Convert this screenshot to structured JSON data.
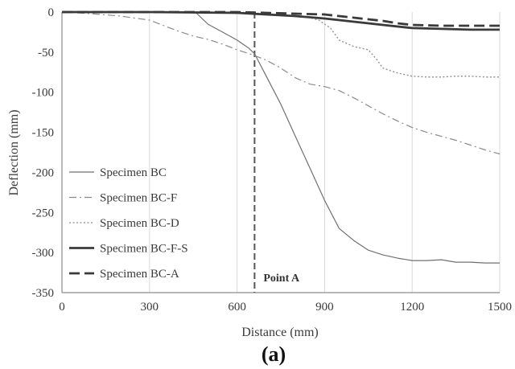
{
  "chart_data": {
    "type": "line",
    "xlabel": "Distance (mm)",
    "ylabel": "Deflection (mm)",
    "xlim": [
      0,
      1500
    ],
    "ylim": [
      -350,
      0
    ],
    "xticks": [
      0,
      300,
      600,
      900,
      1200,
      1500
    ],
    "yticks": [
      0,
      -50,
      -100,
      -150,
      -200,
      -250,
      -300,
      -350
    ],
    "grid": "vertical",
    "legend_position": "bottom-left",
    "panel_label": "(a)",
    "annotation": {
      "label": "Point A",
      "x": 660
    },
    "series": [
      {
        "name": "Specimen BC",
        "style": "solid-thin",
        "color": "#707070",
        "x": [
          0,
          100,
          200,
          300,
          400,
          460,
          500,
          550,
          600,
          640,
          660,
          700,
          750,
          800,
          850,
          900,
          950,
          1000,
          1050,
          1100,
          1150,
          1200,
          1250,
          1300,
          1350,
          1400,
          1450,
          1500
        ],
        "y": [
          0,
          0,
          0,
          0,
          0,
          -1,
          -15,
          -25,
          -35,
          -45,
          -52,
          -80,
          -115,
          -155,
          -195,
          -235,
          -270,
          -285,
          -297,
          -303,
          -307,
          -310,
          -310,
          -309,
          -312,
          -312,
          -313,
          -313
        ]
      },
      {
        "name": "Specimen BC-F",
        "style": "dashdot",
        "color": "#8a8a8a",
        "x": [
          0,
          100,
          200,
          300,
          350,
          400,
          450,
          500,
          550,
          600,
          650,
          700,
          750,
          800,
          850,
          900,
          950,
          1000,
          1050,
          1100,
          1150,
          1200,
          1250,
          1300,
          1350,
          1400,
          1450,
          1500
        ],
        "y": [
          0,
          -2,
          -5,
          -10,
          -17,
          -24,
          -30,
          -34,
          -40,
          -47,
          -53,
          -60,
          -70,
          -82,
          -90,
          -93,
          -98,
          -107,
          -117,
          -127,
          -136,
          -144,
          -150,
          -155,
          -160,
          -166,
          -172,
          -177
        ]
      },
      {
        "name": "Specimen BC-D",
        "style": "dotted",
        "color": "#8a8a8a",
        "x": [
          0,
          300,
          600,
          700,
          800,
          850,
          880,
          920,
          950,
          1000,
          1050,
          1080,
          1100,
          1150,
          1200,
          1250,
          1300,
          1350,
          1400,
          1450,
          1500
        ],
        "y": [
          0,
          0,
          0,
          -2,
          -5,
          -7,
          -10,
          -20,
          -35,
          -43,
          -47,
          -60,
          -70,
          -76,
          -80,
          -81,
          -81,
          -80,
          -80,
          -81,
          -81
        ]
      },
      {
        "name": "Specimen BC-F-S",
        "style": "solid-thick",
        "color": "#3a3a3a",
        "x": [
          0,
          300,
          600,
          700,
          800,
          900,
          1000,
          1100,
          1200,
          1300,
          1400,
          1500
        ],
        "y": [
          0,
          0,
          -1,
          -3,
          -5,
          -8,
          -12,
          -16,
          -20,
          -21,
          -22,
          -22
        ]
      },
      {
        "name": "Specimen BC-A",
        "style": "dashed-thick",
        "color": "#3a3a3a",
        "x": [
          0,
          300,
          600,
          700,
          800,
          900,
          950,
          1000,
          1100,
          1150,
          1200,
          1300,
          1400,
          1500
        ],
        "y": [
          0,
          0,
          0,
          -1,
          -2,
          -3,
          -5,
          -7,
          -11,
          -14,
          -16,
          -17,
          -17,
          -17
        ]
      }
    ]
  }
}
